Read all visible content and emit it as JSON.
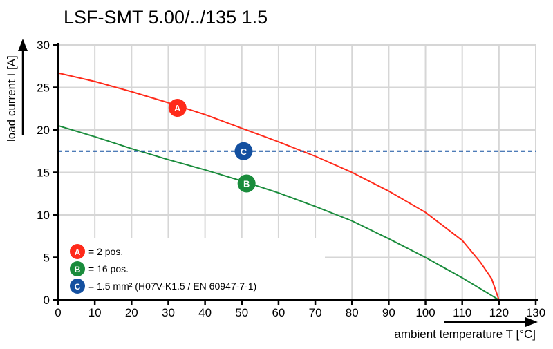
{
  "chart_data": {
    "type": "line",
    "title": "LSF-SMT 5.00/../135 1.5",
    "xlabel": "ambient temperature T [°C]",
    "ylabel": "load current I [A]",
    "xlim": [
      0,
      130
    ],
    "ylim": [
      0,
      30
    ],
    "xticks": [
      0,
      10,
      20,
      30,
      40,
      50,
      60,
      70,
      80,
      90,
      100,
      110,
      120,
      130
    ],
    "yticks": [
      0,
      5,
      10,
      15,
      20,
      25,
      30
    ],
    "grid": true,
    "series": [
      {
        "marker": "A",
        "color": "#ff2a1a",
        "x": [
          0,
          10,
          20,
          30,
          40,
          50,
          60,
          70,
          80,
          90,
          100,
          110,
          115,
          118,
          120
        ],
        "y": [
          26.7,
          25.7,
          24.5,
          23.2,
          21.8,
          20.2,
          18.6,
          16.9,
          15.0,
          12.8,
          10.3,
          7.0,
          4.4,
          2.5,
          0
        ],
        "marker_at": [
          32.5,
          22.6
        ]
      },
      {
        "marker": "B",
        "color": "#1a8c3c",
        "x": [
          0,
          10,
          20,
          30,
          40,
          50,
          60,
          70,
          80,
          90,
          100,
          110,
          120
        ],
        "y": [
          20.5,
          19.2,
          17.8,
          16.5,
          15.3,
          14.0,
          12.6,
          11.0,
          9.3,
          7.2,
          5.0,
          2.6,
          0
        ],
        "marker_at": [
          51.3,
          13.7
        ]
      },
      {
        "marker": "C",
        "color": "#1450a0",
        "style": "dashed",
        "x": [
          0,
          130
        ],
        "y": [
          17.5,
          17.5
        ],
        "marker_at": [
          50.5,
          17.5
        ]
      }
    ],
    "legend": {
      "placement": "bottom-left",
      "entries": [
        {
          "marker": "A",
          "text": "= 2 pos."
        },
        {
          "marker": "B",
          "text": "= 16 pos."
        },
        {
          "marker": "C",
          "text": "= 1.5 mm² (H07V-K1.5 / EN 60947-7-1)"
        }
      ]
    }
  }
}
